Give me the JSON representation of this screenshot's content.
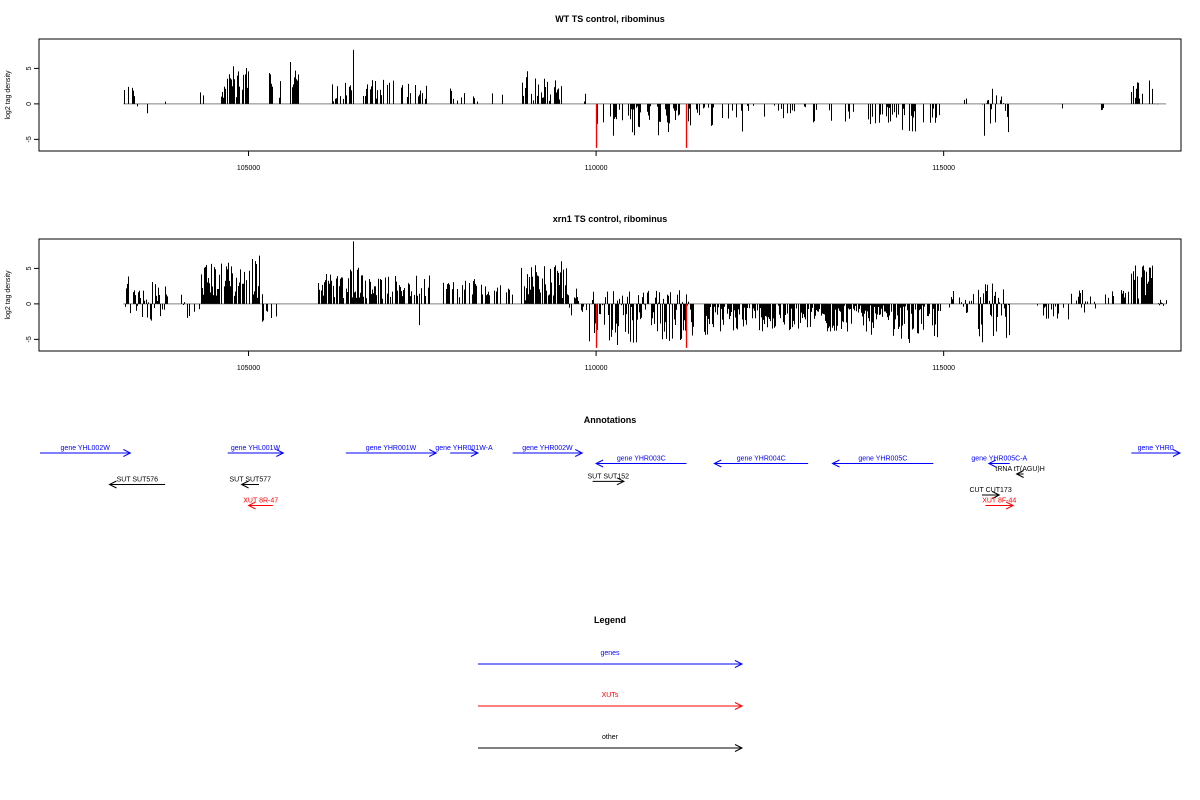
{
  "chart_data": [
    {
      "type": "bar",
      "title": "WT TS control, ribominus",
      "ylabel": "log2 tag density",
      "xlim": [
        102000,
        118400
      ],
      "ylim": [
        -6.5,
        9
      ],
      "x_ticks": [
        105000,
        110000,
        115000
      ],
      "y_ticks": [
        -5,
        0,
        5
      ],
      "baseline": [
        103200,
        118200
      ],
      "colors": {
        "signal": "#000000",
        "highlight": "#ff0000",
        "baseline": "#808080"
      },
      "regions": [
        {
          "range": [
            103200,
            103400
          ],
          "max": 2.6,
          "min": 0.5,
          "density": 0.45
        },
        {
          "range": [
            103400,
            103650
          ],
          "max": 1.0,
          "min": -2.0,
          "density": 0.2
        },
        {
          "range": [
            103700,
            103800
          ],
          "max": 1.0,
          "min": -1.0,
          "density": 0.2
        },
        {
          "range": [
            104300,
            104400
          ],
          "max": 2.0,
          "min": 0.5,
          "density": 0.3
        },
        {
          "range": [
            104600,
            105000
          ],
          "max": 5.3,
          "min": 0.8,
          "density": 0.7
        },
        {
          "range": [
            105300,
            105500
          ],
          "max": 4.8,
          "min": 0.8,
          "density": 0.5
        },
        {
          "range": [
            105600,
            105750
          ],
          "max": 5.8,
          "min": 1.5,
          "density": 0.7
        },
        {
          "range": [
            105800,
            105880
          ],
          "max": 0.0,
          "min": -1.0,
          "density": 0.25
        },
        {
          "range": [
            106200,
            106500
          ],
          "max": 3.0,
          "min": 0.3,
          "density": 0.4
        },
        {
          "range": [
            106600,
            107100
          ],
          "max": 3.5,
          "min": 0.5,
          "density": 0.5
        },
        {
          "range": [
            107200,
            107600
          ],
          "max": 3.0,
          "min": 0.5,
          "density": 0.45
        },
        {
          "range": [
            107900,
            108300
          ],
          "max": 2.5,
          "min": 0.3,
          "density": 0.45
        },
        {
          "range": [
            108500,
            108700
          ],
          "max": 1.5,
          "min": 0.2,
          "density": 0.25
        },
        {
          "range": [
            108900,
            109500
          ],
          "max": 4.0,
          "min": 0.3,
          "density": 0.45
        },
        {
          "range": [
            109800,
            109900
          ],
          "max": 1.5,
          "min": 0.2,
          "density": 0.25
        },
        {
          "range": [
            110100,
            111200
          ],
          "max": -0.2,
          "min": -4.5,
          "density": 0.45
        },
        {
          "range": [
            111300,
            111700
          ],
          "max": -0.2,
          "min": -4.0,
          "density": 0.35
        },
        {
          "range": [
            111800,
            112300
          ],
          "max": -0.2,
          "min": -3.0,
          "density": 0.3
        },
        {
          "range": [
            112400,
            113200
          ],
          "max": -0.2,
          "min": -3.0,
          "density": 0.3
        },
        {
          "range": [
            113300,
            113700
          ],
          "max": -0.2,
          "min": -2.5,
          "density": 0.25
        },
        {
          "range": [
            113900,
            114600
          ],
          "max": -0.2,
          "min": -4.0,
          "density": 0.35
        },
        {
          "range": [
            114700,
            115000
          ],
          "max": -0.2,
          "min": -3.0,
          "density": 0.3
        },
        {
          "range": [
            115250,
            115350
          ],
          "max": 1.0,
          "min": 0.1,
          "density": 0.2
        },
        {
          "range": [
            115550,
            115950
          ],
          "max": 2.5,
          "min": -4.5,
          "density": 0.6
        },
        {
          "range": [
            116700,
            116750
          ],
          "max": -0.3,
          "min": -2.0,
          "density": 0.2
        },
        {
          "range": [
            117250,
            117300
          ],
          "max": -0.3,
          "min": -1.0,
          "density": 0.2
        },
        {
          "range": [
            117700,
            118000
          ],
          "max": 3.3,
          "min": 0.5,
          "density": 0.45
        },
        {
          "range": [
            118000,
            118200
          ],
          "max": 0.5,
          "min": -1.0,
          "density": 0.2
        }
      ],
      "spikes": [
        {
          "x": 104770,
          "y": 5.3
        },
        {
          "x": 105600,
          "y": 5.9
        },
        {
          "x": 106500,
          "y": 7.6
        },
        {
          "x": 109000,
          "y": 4.6
        },
        {
          "x": 110010,
          "y": -2.8
        },
        {
          "x": 110250,
          "y": -4.5
        },
        {
          "x": 112100,
          "y": -3.9
        },
        {
          "x": 114500,
          "y": -3.8
        },
        {
          "x": 115580,
          "y": -4.5
        },
        {
          "x": 117950,
          "y": 3.3
        }
      ],
      "red_spikes": [
        {
          "x": 110000,
          "y": -6.2
        },
        {
          "x": 111300,
          "y": -6.2
        }
      ]
    },
    {
      "type": "bar",
      "title": "xrn1 TS control, ribominus",
      "ylabel": "log2 tag density",
      "xlim": [
        102000,
        118400
      ],
      "ylim": [
        -6.5,
        9
      ],
      "x_ticks": [
        105000,
        110000,
        115000
      ],
      "y_ticks": [
        -5,
        0,
        5
      ],
      "baseline": [
        103200,
        118200
      ],
      "colors": {
        "signal": "#000000",
        "highlight": "#ff0000",
        "baseline": "#808080"
      },
      "regions": [
        {
          "range": [
            103200,
            103400
          ],
          "max": 4.0,
          "min": -2.0,
          "density": 0.7
        },
        {
          "range": [
            103400,
            103850
          ],
          "max": 3.5,
          "min": -2.5,
          "density": 0.7
        },
        {
          "range": [
            104000,
            104300
          ],
          "max": 3.0,
          "min": -2.0,
          "density": 0.5
        },
        {
          "range": [
            104300,
            104750
          ],
          "max": 5.8,
          "min": 0.5,
          "density": 0.85
        },
        {
          "range": [
            104750,
            105050
          ],
          "max": 5.0,
          "min": 0.5,
          "density": 0.6
        },
        {
          "range": [
            105050,
            105200
          ],
          "max": 6.5,
          "min": 0.5,
          "density": 0.7
        },
        {
          "range": [
            105200,
            105400
          ],
          "max": -0.3,
          "min": -2.8,
          "density": 0.35
        },
        {
          "range": [
            106000,
            106350
          ],
          "max": 4.5,
          "min": 0.5,
          "density": 0.7
        },
        {
          "range": [
            106350,
            106750
          ],
          "max": 5.5,
          "min": 0.5,
          "density": 0.85
        },
        {
          "range": [
            106750,
            107250
          ],
          "max": 4.0,
          "min": 0.5,
          "density": 0.75
        },
        {
          "range": [
            107300,
            107600
          ],
          "max": 4.0,
          "min": 0.5,
          "density": 0.6
        },
        {
          "range": [
            107800,
            108300
          ],
          "max": 3.5,
          "min": 0.3,
          "density": 0.65
        },
        {
          "range": [
            108350,
            108800
          ],
          "max": 3.0,
          "min": 0.3,
          "density": 0.55
        },
        {
          "range": [
            108900,
            109600
          ],
          "max": 5.5,
          "min": 0.3,
          "density": 0.75
        },
        {
          "range": [
            109600,
            109900
          ],
          "max": 2.5,
          "min": -2.0,
          "density": 0.5
        },
        {
          "range": [
            109900,
            111400
          ],
          "max": 2.0,
          "min": -5.5,
          "density": 0.8
        },
        {
          "range": [
            111550,
            112300
          ],
          "max": -0.2,
          "min": -4.5,
          "density": 0.8
        },
        {
          "range": [
            112300,
            113300
          ],
          "max": -0.2,
          "min": -4.0,
          "density": 0.8
        },
        {
          "range": [
            113300,
            114200
          ],
          "max": -0.2,
          "min": -4.5,
          "density": 0.8
        },
        {
          "range": [
            114200,
            114950
          ],
          "max": -0.2,
          "min": -5.0,
          "density": 0.8
        },
        {
          "range": [
            115000,
            115500
          ],
          "max": 2.0,
          "min": -1.5,
          "density": 0.4
        },
        {
          "range": [
            115500,
            115950
          ],
          "max": 3.0,
          "min": -5.5,
          "density": 0.9
        },
        {
          "range": [
            116300,
            116400
          ],
          "max": 1.0,
          "min": -0.5,
          "density": 0.3
        },
        {
          "range": [
            116400,
            116800
          ],
          "max": -0.3,
          "min": -2.5,
          "density": 0.4
        },
        {
          "range": [
            116800,
            117200
          ],
          "max": 2.0,
          "min": -2.0,
          "density": 0.45
        },
        {
          "range": [
            117300,
            117700
          ],
          "max": 2.0,
          "min": 0.3,
          "density": 0.35
        },
        {
          "range": [
            117700,
            118000
          ],
          "max": 5.5,
          "min": 0.5,
          "density": 0.75
        },
        {
          "range": [
            118000,
            118200
          ],
          "max": 1.0,
          "min": -0.5,
          "density": 0.35
        }
      ],
      "spikes": [
        {
          "x": 104700,
          "y": 5.8
        },
        {
          "x": 105150,
          "y": 6.8
        },
        {
          "x": 106500,
          "y": 8.8
        },
        {
          "x": 107450,
          "y": -3.0
        },
        {
          "x": 109500,
          "y": 6.0
        },
        {
          "x": 110300,
          "y": -5.8
        },
        {
          "x": 114500,
          "y": -5.5
        },
        {
          "x": 115550,
          "y": -5.4
        },
        {
          "x": 117750,
          "y": 5.4
        }
      ],
      "red_spikes": [
        {
          "x": 110000,
          "y": -6.2
        },
        {
          "x": 111300,
          "y": -6.2
        }
      ]
    },
    {
      "type": "other",
      "title": "Annotations",
      "xlim": [
        102000,
        118400
      ],
      "colors": {
        "genes": "#0000ff",
        "XUTs": "#ff0000",
        "other": "#000000"
      },
      "features": [
        {
          "label": "gene YHL002W",
          "class": "genes",
          "start": 102000,
          "end": 103300,
          "strand": "+",
          "row": 0
        },
        {
          "label": "gene YHL001W",
          "class": "genes",
          "start": 104700,
          "end": 105500,
          "strand": "+",
          "row": 0
        },
        {
          "label": "gene YHR001W",
          "class": "genes",
          "start": 106400,
          "end": 107700,
          "strand": "+",
          "row": 0
        },
        {
          "label": "gene YHR001W-A",
          "class": "genes",
          "start": 107900,
          "end": 108300,
          "strand": "+",
          "row": 0
        },
        {
          "label": "gene YHR002W",
          "class": "genes",
          "start": 108800,
          "end": 109800,
          "strand": "+",
          "row": 0
        },
        {
          "label": "gene YHR003C",
          "class": "genes",
          "start": 110000,
          "end": 111300,
          "strand": "-",
          "row": 1
        },
        {
          "label": "gene YHR004C",
          "class": "genes",
          "start": 111700,
          "end": 113050,
          "strand": "-",
          "row": 1
        },
        {
          "label": "gene YHR005C",
          "class": "genes",
          "start": 113400,
          "end": 114850,
          "strand": "-",
          "row": 1
        },
        {
          "label": "gene YHR005C-A",
          "class": "genes",
          "start": 115650,
          "end": 115950,
          "strand": "-",
          "row": 1
        },
        {
          "label": "gene YHR0",
          "class": "genes",
          "start": 117700,
          "end": 118400,
          "strand": "+",
          "row": 0
        },
        {
          "label": "tRNA tT(AGU)H",
          "class": "other",
          "start": 116050,
          "end": 116150,
          "strand": "-",
          "row": 2
        },
        {
          "label": "SUT SUT576",
          "class": "other",
          "start": 103000,
          "end": 103800,
          "strand": "-",
          "row": 3
        },
        {
          "label": "SUT SUT577",
          "class": "other",
          "start": 104900,
          "end": 105150,
          "strand": "-",
          "row": 3
        },
        {
          "label": "SUT SUT152",
          "class": "other",
          "start": 109950,
          "end": 110400,
          "strand": "+",
          "row": 2.7
        },
        {
          "label": "CUT CUT173",
          "class": "other",
          "start": 115550,
          "end": 115800,
          "strand": "+",
          "row": 4
        },
        {
          "label": "XUT 8R-47",
          "class": "XUTs",
          "start": 105000,
          "end": 105350,
          "strand": "-",
          "row": 5
        },
        {
          "label": "XUT 8F-44",
          "class": "XUTs",
          "start": 115600,
          "end": 116000,
          "strand": "+",
          "row": 5
        }
      ]
    },
    {
      "type": "other",
      "title": "Legend",
      "entries": [
        {
          "label": "genes",
          "color": "#0000ff"
        },
        {
          "label": "XUTs",
          "color": "#ff0000"
        },
        {
          "label": "other",
          "color": "#000000"
        }
      ]
    }
  ]
}
